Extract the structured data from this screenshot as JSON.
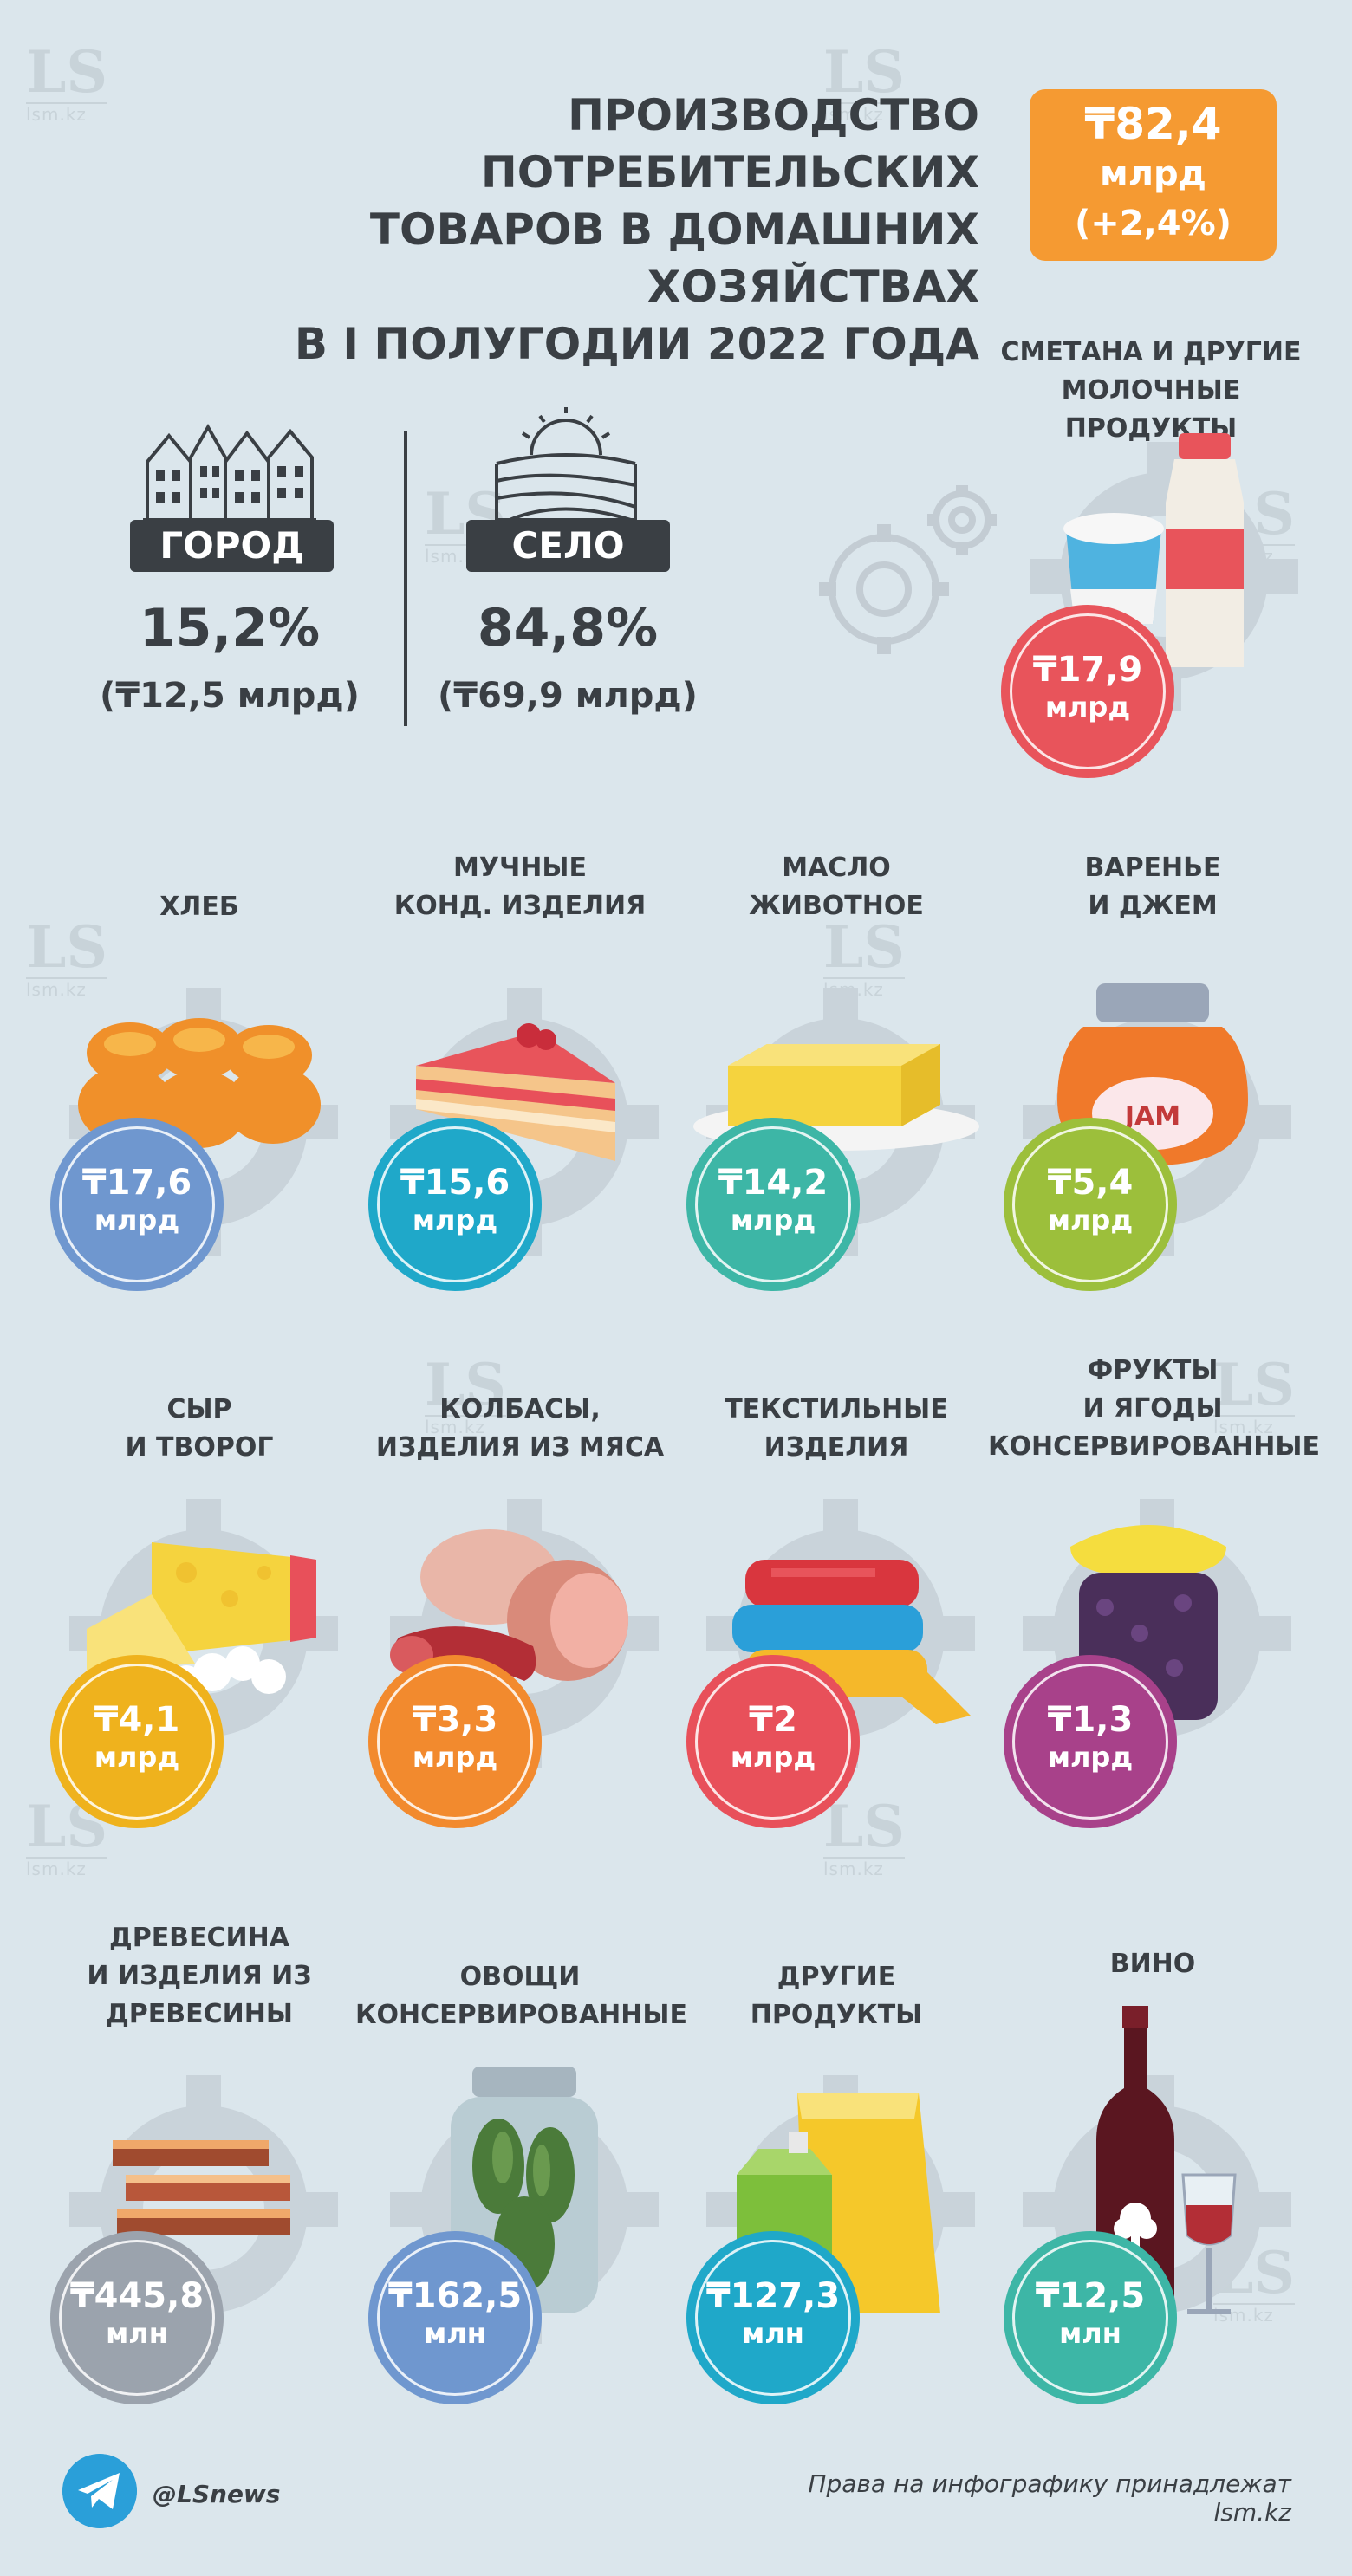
{
  "title": "ПРОИЗВОДСТВО ПОТРЕБИТЕЛЬСКИХ\nТОВАРОВ В ДОМАШНИХ ХОЗЯЙСТВАХ\nВ I ПОЛУГОДИИ 2022 ГОДА",
  "total": {
    "value": "₸82,4",
    "unit": "млрд",
    "change": "(+2,4%)"
  },
  "split": {
    "city": {
      "label": "ГОРОД",
      "percent": "15,2%",
      "amount": "(₸12,5 млрд)"
    },
    "village": {
      "label": "СЕЛО",
      "percent": "84,8%",
      "amount": "(₸69,9 млрд)"
    }
  },
  "watermark": {
    "logo": "LS",
    "site": "lsm.kz"
  },
  "products": [
    {
      "label": "СМЕТАНА И ДРУГИЕ\nМОЛОЧНЫЕ ПРОДУКТЫ",
      "value": "₸17,9",
      "unit": "млрд",
      "color": "#e8545b",
      "icon": "dairy-icon"
    },
    {
      "label": "ХЛЕБ",
      "value": "₸17,6",
      "unit": "млрд",
      "color": "#6f97cf",
      "icon": "bread-icon"
    },
    {
      "label": "МУЧНЫЕ\nКОНД. ИЗДЕЛИЯ",
      "value": "₸15,6",
      "unit": "млрд",
      "color": "#1fa8c9",
      "icon": "cake-icon"
    },
    {
      "label": "МАСЛО\nЖИВОТНОЕ",
      "value": "₸14,2",
      "unit": "млрд",
      "color": "#3db6a6",
      "icon": "butter-icon"
    },
    {
      "label": "ВАРЕНЬЕ\nИ ДЖЕМ",
      "value": "₸5,4",
      "unit": "млрд",
      "color": "#9cbf3b",
      "icon": "jam-icon",
      "jar_text": "JAM"
    },
    {
      "label": "СЫР\nИ ТВОРОГ",
      "value": "₸4,1",
      "unit": "млрд",
      "color": "#efb21d",
      "icon": "cheese-icon"
    },
    {
      "label": "КОЛБАСЫ,\nИЗДЕЛИЯ ИЗ МЯСА",
      "value": "₸3,3",
      "unit": "млрд",
      "color": "#f28a2e",
      "icon": "sausage-icon"
    },
    {
      "label": "ТЕКСТИЛЬНЫЕ\nИЗДЕЛИЯ",
      "value": "₸2",
      "unit": "млрд",
      "color": "#e8505a",
      "icon": "textile-icon"
    },
    {
      "label": "ФРУКТЫ\nИ ЯГОДЫ\nКОНСЕРВИРОВАННЫЕ",
      "value": "₸1,3",
      "unit": "млрд",
      "color": "#a8418a",
      "icon": "preserved-fruit-icon"
    },
    {
      "label": "ДРЕВЕСИНА\nИ ИЗДЕЛИЯ ИЗ\nДРЕВЕСИНЫ",
      "value": "₸445,8",
      "unit": "млн",
      "color": "#9ba3ad",
      "icon": "wood-icon"
    },
    {
      "label": "ОВОЩИ\nКОНСЕРВИРОВАННЫЕ",
      "value": "₸162,5",
      "unit": "млн",
      "color": "#6f97cf",
      "icon": "pickles-icon"
    },
    {
      "label": "ДРУГИЕ\nПРОДУКТЫ",
      "value": "₸127,3",
      "unit": "млн",
      "color": "#1fa8c9",
      "icon": "other-products-icon"
    },
    {
      "label": "ВИНО",
      "value": "₸12,5",
      "unit": "млн",
      "color": "#3db6a6",
      "icon": "wine-icon"
    }
  ],
  "footer": {
    "handle": "@LSnews",
    "rights": "Права на инфографику принадлежат lsm.kz",
    "social_icon": "telegram-icon"
  }
}
